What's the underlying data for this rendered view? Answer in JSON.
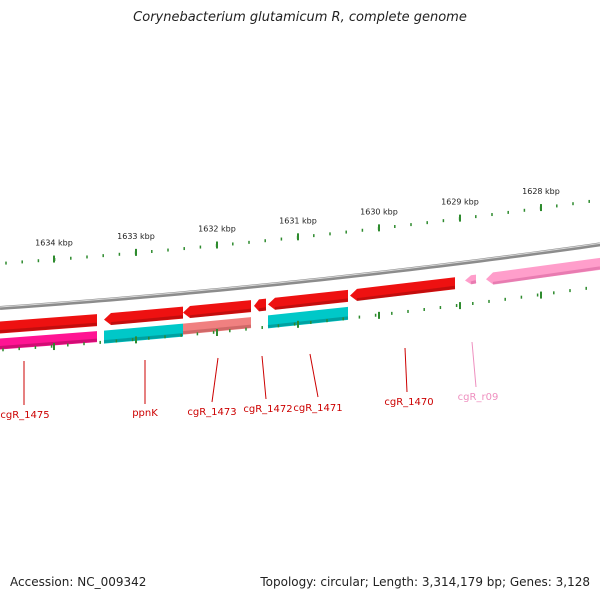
{
  "title": "Corynebacterium glutamicum R, complete genome",
  "footer": {
    "accession": "Accession: NC_009342",
    "topology": "Topology: circular; Length: 3,314,179 bp; Genes: 3,128"
  },
  "ticks": {
    "color": "#2e8b2e",
    "labels": [
      "1634 kbp",
      "1633 kbp",
      "1632 kbp",
      "1631 kbp",
      "1630 kbp",
      "1629 kbp",
      "1628 kbp"
    ]
  },
  "colors": {
    "backbone": "#8c8c8c",
    "cds": "#ee1111",
    "cds_dark": "#b80000",
    "pseudo": "#ff1493",
    "cog_cyan": "#00c8c8",
    "cog_salmon": "#f08080",
    "rna": "#ff9ecb",
    "label": "#cc0000",
    "rna_label": "#ee8fbf"
  },
  "genes": [
    {
      "id": "cgR_1475",
      "label": "cgR_1475",
      "kind": "cds"
    },
    {
      "id": "ppnK",
      "label": "ppnK",
      "kind": "cds"
    },
    {
      "id": "cgR_1473",
      "label": "cgR_1473",
      "kind": "cds"
    },
    {
      "id": "cgR_1472",
      "label": "cgR_1472",
      "kind": "cds"
    },
    {
      "id": "cgR_1471",
      "label": "cgR_1471",
      "kind": "cds"
    },
    {
      "id": "cgR_1470",
      "label": "cgR_1470",
      "kind": "cds"
    },
    {
      "id": "cgR_r09",
      "label": "cgR_r09",
      "kind": "rna"
    }
  ]
}
